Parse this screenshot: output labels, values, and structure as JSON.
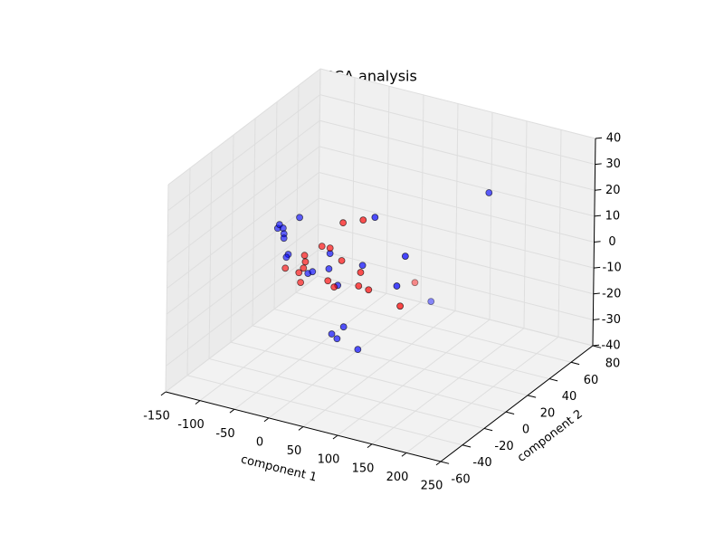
{
  "chart_data": {
    "type": "scatter3d",
    "title": "PCA analysis",
    "x_label": "component 1",
    "y_label": "component 2",
    "xlim": [
      -150,
      250
    ],
    "ylim": [
      -60,
      80
    ],
    "zlim": [
      -40,
      40
    ],
    "xticks": [
      -150,
      -100,
      -50,
      0,
      50,
      100,
      150,
      200,
      250
    ],
    "yticks": [
      -60,
      -40,
      -20,
      0,
      20,
      40,
      60,
      80
    ],
    "zticks": [
      -40,
      -30,
      -20,
      -10,
      0,
      10,
      20,
      30,
      40
    ],
    "grid": true,
    "series": [
      {
        "color": "#0000ff",
        "x": [
          -84.2,
          -81.6,
          -76.3,
          -75.0,
          -75.0,
          -52.6,
          -68.4,
          -71.1,
          -39.5,
          -32.9,
          -7.9,
          -9.2,
          3.9,
          39.5,
          56.6,
          101.3,
          89.5,
          159.0,
          30.3,
          13.2,
          -3.9,
          3.9,
          34.2
        ],
        "y": [
          0,
          0,
          0,
          0,
          0,
          0,
          0,
          0,
          0,
          0,
          0,
          0,
          0,
          0,
          0,
          0,
          0,
          40,
          70,
          0,
          0,
          0,
          0
        ],
        "z": [
          8.4,
          10.0,
          9.0,
          6.9,
          5.2,
          14.7,
          -0.6,
          -1.9,
          -6.0,
          -4.9,
          3.8,
          -2.2,
          -7.7,
          2.4,
          22.1,
          10.1,
          -2.2,
          25.7,
          -34.5,
          -23.1,
          -27.0,
          -28.3,
          -30.4
        ]
      },
      {
        "color": "#ff0000",
        "x": [
          10.5,
          39.5,
          -19.7,
          -7.9,
          -44.7,
          -43.4,
          -46.1,
          -72.4,
          -52.6,
          9.2,
          -50.0,
          -10.5,
          -1.3,
          36.8,
          34.2,
          48.7,
          94.7,
          6.6
        ],
        "y": [
          0,
          0,
          0,
          0,
          0,
          0,
          0,
          0,
          0,
          0,
          0,
          0,
          0,
          0,
          0,
          0,
          0,
          70
        ],
        "z": [
          16.9,
          19.9,
          5.8,
          5.9,
          0.6,
          -1.8,
          -4.4,
          -6.2,
          -6.6,
          2.2,
          -10.2,
          -6.9,
          -8.7,
          -0.5,
          -5.9,
          -6.4,
          -9.6,
          -28.8
        ]
      }
    ]
  }
}
